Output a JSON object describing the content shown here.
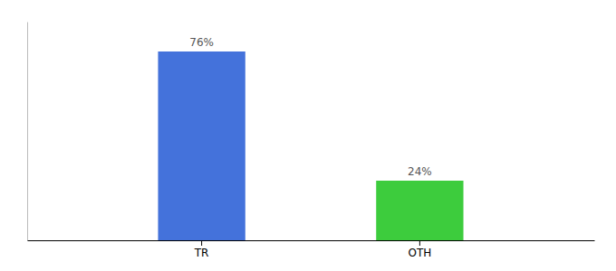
{
  "chart_data": {
    "type": "bar",
    "categories": [
      "TR",
      "OTH"
    ],
    "values": [
      76,
      24
    ],
    "value_labels": [
      "76%",
      "24%"
    ],
    "colors": [
      "#4472db",
      "#3dcc3d"
    ],
    "ylim": [
      0,
      88
    ],
    "data_labels": true,
    "tick_labels": "x"
  }
}
